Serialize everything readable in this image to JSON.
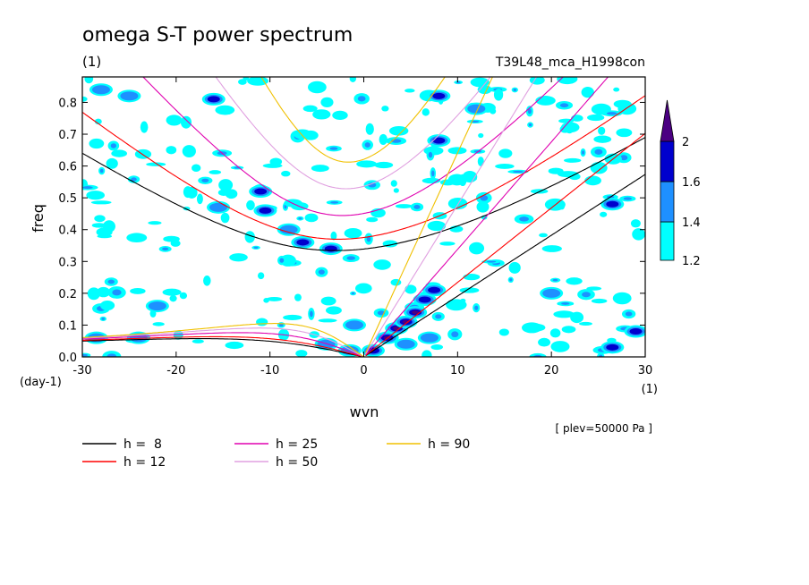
{
  "chart_data": {
    "type": "heatmap",
    "title": "omega S-T power spectrum",
    "subtitle_left": "(1)",
    "subtitle_right": "T39L48_mca_H1998con",
    "xlabel": "wvn",
    "ylabel": "freq",
    "x_unit": "(1)",
    "y_unit": "(day-1)",
    "annotation": "[ plev=50000 Pa ]",
    "xlim": [
      -30,
      30
    ],
    "ylim": [
      0,
      0.88
    ],
    "xticks": [
      -30,
      -20,
      -10,
      0,
      10,
      20,
      30
    ],
    "xtick_labels": [
      "-30",
      "-20",
      "-10",
      "0",
      "10",
      "20",
      "30"
    ],
    "yticks": [
      0,
      0.1,
      0.2,
      0.3,
      0.4,
      0.5,
      0.6,
      0.7,
      0.8
    ],
    "ytick_labels": [
      "0.0",
      "0.1",
      "0.2",
      "0.3",
      "0.4",
      "0.5",
      "0.6",
      "0.7",
      "0.8"
    ],
    "colorbar": {
      "levels": [
        1.2,
        1.4,
        1.6,
        2
      ],
      "labels": [
        "1.2",
        "1.4",
        "1.6",
        "2"
      ],
      "colors": [
        "#00ffff",
        "#1e90ff",
        "#0000cd",
        "#4b0082"
      ]
    },
    "dispersion_curves": [
      {
        "name": "h =  8",
        "h": 8,
        "color": "#000000"
      },
      {
        "name": "h = 12",
        "h": 12,
        "color": "#ff0000"
      },
      {
        "name": "h = 25",
        "h": 25,
        "color": "#e000b0"
      },
      {
        "name": "h = 50",
        "h": 50,
        "color": "#e0a0e0"
      },
      {
        "name": "h = 90",
        "h": 90,
        "color": "#f0c000"
      }
    ],
    "power_regions": [
      {
        "x": 2.5,
        "y": 0.06,
        "level": 2
      },
      {
        "x": 3.5,
        "y": 0.09,
        "level": 2
      },
      {
        "x": 4.5,
        "y": 0.11,
        "level": 2
      },
      {
        "x": 5.5,
        "y": 0.14,
        "level": 2
      },
      {
        "x": 6.5,
        "y": 0.18,
        "level": 1.6
      },
      {
        "x": 7.5,
        "y": 0.21,
        "level": 1.6
      },
      {
        "x": 4.5,
        "y": 0.04,
        "level": 1.4
      },
      {
        "x": 7.0,
        "y": 0.06,
        "level": 1.4
      },
      {
        "x": 1.0,
        "y": 0.02,
        "level": 1.6
      },
      {
        "x": -1.5,
        "y": 0.02,
        "level": 1.4
      },
      {
        "x": -3.5,
        "y": 0.34,
        "level": 1.6
      },
      {
        "x": -6.5,
        "y": 0.36,
        "level": 1.6
      },
      {
        "x": -8.0,
        "y": 0.4,
        "level": 1.4
      },
      {
        "x": -10.5,
        "y": 0.46,
        "level": 1.6
      },
      {
        "x": -11.0,
        "y": 0.52,
        "level": 1.6
      },
      {
        "x": -15.5,
        "y": 0.47,
        "level": 1.4
      },
      {
        "x": -16.0,
        "y": 0.81,
        "level": 1.6
      },
      {
        "x": -28.0,
        "y": 0.84,
        "level": 1.4
      },
      {
        "x": -25.0,
        "y": 0.82,
        "level": 1.4
      },
      {
        "x": 8.0,
        "y": 0.68,
        "level": 1.6
      },
      {
        "x": 8.0,
        "y": 0.82,
        "level": 1.6
      },
      {
        "x": 12.0,
        "y": 0.78,
        "level": 1.4
      },
      {
        "x": 26.5,
        "y": 0.03,
        "level": 1.6
      },
      {
        "x": 29.0,
        "y": 0.08,
        "level": 1.6
      },
      {
        "x": -4.0,
        "y": 0.04,
        "level": 1.4
      },
      {
        "x": -24.0,
        "y": 0.06,
        "level": 1.4
      },
      {
        "x": -28.5,
        "y": 0.06,
        "level": 1.4
      },
      {
        "x": 26.5,
        "y": 0.48,
        "level": 1.6
      },
      {
        "x": 20.0,
        "y": 0.2,
        "level": 1.4
      },
      {
        "x": -1.0,
        "y": 0.1,
        "level": 1.4
      },
      {
        "x": -22.0,
        "y": 0.16,
        "level": 1.4
      }
    ]
  }
}
